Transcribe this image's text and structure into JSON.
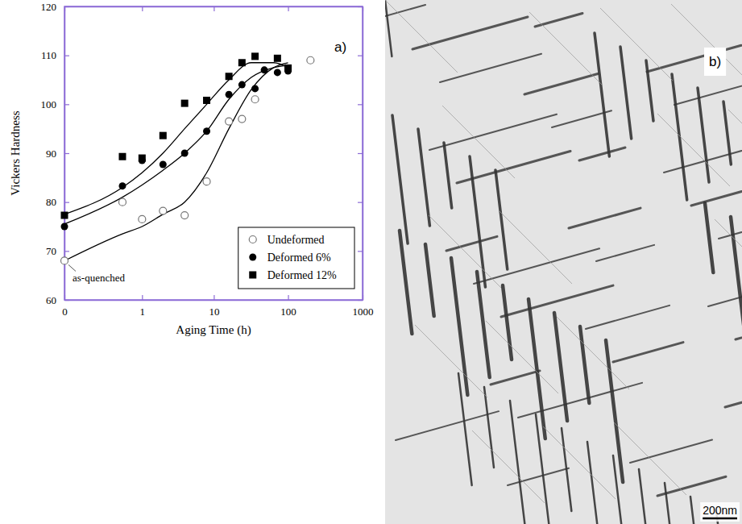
{
  "chart_data": {
    "type": "scatter",
    "panel_label": "a)",
    "x_label": "Aging Time (h)",
    "y_label": "Vickers Hardness",
    "log": "x",
    "xlim": [
      0,
      1000
    ],
    "ylim": [
      60,
      120
    ],
    "xticks": [
      0,
      1,
      10,
      100,
      1000
    ],
    "yticks": [
      60,
      70,
      80,
      90,
      100,
      110,
      120
    ],
    "grid": false,
    "legend": "lower right",
    "annotations": [
      {
        "text": "as-quenched",
        "x": 0,
        "y": 68
      }
    ],
    "series": [
      {
        "name": "Undeformed",
        "color": "#777777",
        "marker": "open-circle",
        "x": [
          0,
          0.5,
          1,
          2,
          4,
          8,
          16,
          24,
          36,
          200
        ],
        "values": [
          68,
          80,
          76.5,
          78.2,
          77.3,
          84.2,
          96.5,
          97,
          101,
          109
        ],
        "fit": {
          "x": [
            0,
            0.5,
            1,
            2,
            4,
            8,
            16,
            32,
            64,
            100
          ],
          "values": [
            68,
            73.5,
            75,
            77.5,
            80,
            86,
            95,
            103,
            107.5,
            108.5
          ]
        }
      },
      {
        "name": "Deformed 6%",
        "color": "#000000",
        "marker": "circle",
        "x": [
          0,
          0.5,
          1,
          2,
          4,
          8,
          16,
          24,
          36,
          48,
          72,
          100
        ],
        "values": [
          75,
          83.3,
          88.5,
          87.7,
          90,
          94.5,
          102,
          104,
          103.2,
          107,
          106.5,
          106.8
        ],
        "fit": {
          "x": [
            0,
            0.5,
            1,
            2,
            4,
            8,
            16,
            32,
            64,
            100
          ],
          "values": [
            75.5,
            81,
            83.5,
            86.5,
            90,
            94.5,
            101,
            105.5,
            107.5,
            108
          ]
        }
      },
      {
        "name": "Deformed 12%",
        "color": "#000000",
        "marker": "square",
        "x": [
          0,
          0.5,
          1,
          2,
          4,
          8,
          16,
          24,
          36,
          72,
          100
        ],
        "values": [
          77.3,
          89.3,
          89,
          93.6,
          100.2,
          100.8,
          105.7,
          108.5,
          109.8,
          109.4,
          107.4
        ],
        "fit": {
          "x": [
            0,
            0.5,
            1,
            2,
            4,
            8,
            16,
            32,
            64,
            100
          ],
          "values": [
            77.5,
            83,
            86,
            90,
            95,
            100,
            105,
            108.5,
            108.5,
            107.5
          ]
        }
      }
    ]
  },
  "micrograph": {
    "panel_label": "b)",
    "scale_bar": "200nm"
  }
}
